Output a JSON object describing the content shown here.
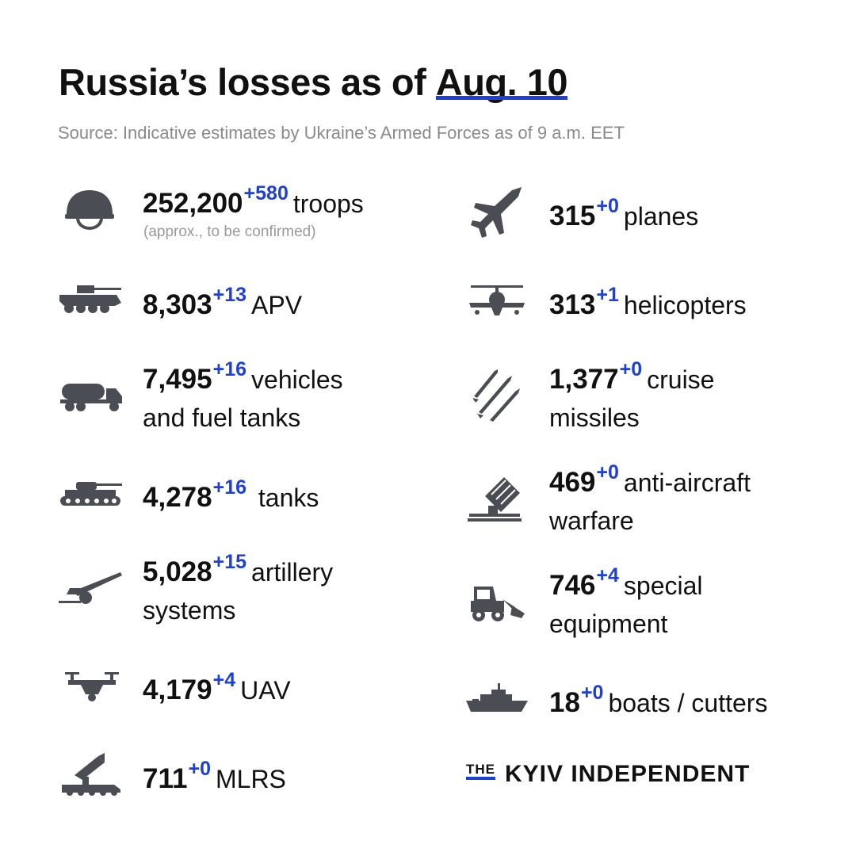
{
  "header": {
    "title_prefix": "Russia’s losses  as of ",
    "title_date": "Aug. 10",
    "source": "Source: Indicative estimates by Ukraine’s Armed Forces as of 9 a.m. EET"
  },
  "items": {
    "troops": {
      "icon": "helmet-icon",
      "value": "252,200",
      "increase": "+580",
      "label_1": "troops",
      "label_2": "",
      "note": "(approx., to be confirmed)"
    },
    "apv": {
      "icon": "apv-icon",
      "value": "8,303",
      "increase": "+13",
      "label_1": "APV",
      "label_2": ""
    },
    "vehicles": {
      "icon": "fuel-truck-icon",
      "value": "7,495",
      "increase": "+16",
      "label_1": "vehicles",
      "label_2": "and fuel tanks"
    },
    "tanks": {
      "icon": "tank-icon",
      "value": "4,278",
      "increase": "+16",
      "label_1": "tanks",
      "label_2": ""
    },
    "artillery": {
      "icon": "artillery-icon",
      "value": "5,028",
      "increase": "+15",
      "label_1": "artillery",
      "label_2": "systems"
    },
    "uav": {
      "icon": "drone-icon",
      "value": "4,179",
      "increase": "+4",
      "label_1": "UAV",
      "label_2": ""
    },
    "mlrs": {
      "icon": "mlrs-icon",
      "value": "711",
      "increase": "+0",
      "label_1": "MLRS",
      "label_2": ""
    },
    "planes": {
      "icon": "plane-icon",
      "value": "315",
      "increase": "+0",
      "label_1": "planes",
      "label_2": ""
    },
    "helicopters": {
      "icon": "helicopter-icon",
      "value": "313",
      "increase": "+1",
      "label_1": "helicopters",
      "label_2": ""
    },
    "missiles": {
      "icon": "missile-icon",
      "value": "1,377",
      "increase": "+0",
      "label_1": "cruise",
      "label_2": "missiles"
    },
    "antiaircraft": {
      "icon": "anti-aircraft-icon",
      "value": "469",
      "increase": "+0",
      "label_1": "anti-aircraft",
      "label_2": "warfare"
    },
    "special": {
      "icon": "loader-icon",
      "value": "746",
      "increase": "+4",
      "label_1": "special",
      "label_2": "equipment"
    },
    "boats": {
      "icon": "boat-icon",
      "value": "18",
      "increase": "+0",
      "label_1": "boats / cutters",
      "label_2": ""
    }
  },
  "logo": {
    "the": "THE",
    "name": "KYIV INDEPENDENT"
  },
  "colors": {
    "accent": "#1e40d8",
    "icon": "#4a4d54",
    "text": "#111111",
    "muted": "#8a8a8a"
  }
}
